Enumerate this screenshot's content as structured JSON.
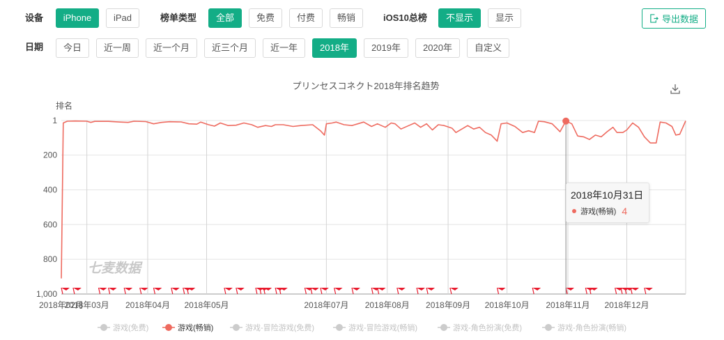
{
  "filters": {
    "device": {
      "label": "设备",
      "options": [
        {
          "label": "iPhone",
          "active": true
        },
        {
          "label": "iPad",
          "active": false
        }
      ]
    },
    "list_type": {
      "label": "榜单类型",
      "options": [
        {
          "label": "全部",
          "active": true
        },
        {
          "label": "免费",
          "active": false
        },
        {
          "label": "付费",
          "active": false
        },
        {
          "label": "畅销",
          "active": false
        }
      ]
    },
    "ios10": {
      "label": "iOS10总榜",
      "options": [
        {
          "label": "不显示",
          "active": true
        },
        {
          "label": "显示",
          "active": false
        }
      ]
    },
    "date": {
      "label": "日期",
      "options": [
        {
          "label": "今日",
          "active": false
        },
        {
          "label": "近一周",
          "active": false
        },
        {
          "label": "近一个月",
          "active": false
        },
        {
          "label": "近三个月",
          "active": false
        },
        {
          "label": "近一年",
          "active": false
        },
        {
          "label": "2018年",
          "active": true
        },
        {
          "label": "2019年",
          "active": false
        },
        {
          "label": "2020年",
          "active": false
        },
        {
          "label": "自定义",
          "active": false
        }
      ]
    }
  },
  "export_label": "导出数据",
  "colors": {
    "accent": "#13ad86",
    "series": "#ee6a5f",
    "flag": "#e8192c",
    "legend_inactive": "#cccccc"
  },
  "watermark": "七麦数据",
  "tooltip": {
    "date": "2018年10月31日",
    "series": "游戏(畅销)",
    "value": "4"
  },
  "chart_data": {
    "type": "line",
    "title": "プリンセスコネクト2018年排名趋势",
    "ylabel": "排名",
    "y_inverted": true,
    "ylim": [
      1,
      1000
    ],
    "y_ticks": [
      "1",
      "200",
      "400",
      "600",
      "800",
      "1,000"
    ],
    "x_range": [
      "2018-02-16",
      "2018-12-31"
    ],
    "x_ticks": [
      "2018年02月",
      "2018年03月",
      "2018年04月",
      "2018年05月",
      "2018年07月",
      "2018年08月",
      "2018年09月",
      "2018年10月",
      "2018年11月",
      "2018年12月"
    ],
    "legend": [
      {
        "name": "游戏(免费)",
        "active": false
      },
      {
        "name": "游戏(畅销)",
        "active": true
      },
      {
        "name": "游戏-冒险游戏(免费)",
        "active": false
      },
      {
        "name": "游戏-冒险游戏(畅销)",
        "active": false
      },
      {
        "name": "游戏-角色扮演(免费)",
        "active": false
      },
      {
        "name": "游戏-角色扮演(畅销)",
        "active": false
      }
    ],
    "series": [
      {
        "name": "游戏(畅销)",
        "points": [
          [
            "2018-02-16",
            910
          ],
          [
            "2018-02-17",
            15
          ],
          [
            "2018-02-19",
            5
          ],
          [
            "2018-02-23",
            4
          ],
          [
            "2018-03-01",
            5
          ],
          [
            "2018-03-03",
            12
          ],
          [
            "2018-03-05",
            6
          ],
          [
            "2018-03-12",
            6
          ],
          [
            "2018-03-18",
            10
          ],
          [
            "2018-03-22",
            12
          ],
          [
            "2018-03-25",
            5
          ],
          [
            "2018-03-31",
            7
          ],
          [
            "2018-04-04",
            20
          ],
          [
            "2018-04-08",
            12
          ],
          [
            "2018-04-12",
            8
          ],
          [
            "2018-04-18",
            9
          ],
          [
            "2018-04-22",
            20
          ],
          [
            "2018-04-26",
            22
          ],
          [
            "2018-04-28",
            10
          ],
          [
            "2018-05-02",
            25
          ],
          [
            "2018-05-05",
            33
          ],
          [
            "2018-05-08",
            15
          ],
          [
            "2018-05-12",
            30
          ],
          [
            "2018-05-16",
            28
          ],
          [
            "2018-05-20",
            15
          ],
          [
            "2018-05-24",
            25
          ],
          [
            "2018-05-27",
            40
          ],
          [
            "2018-05-31",
            30
          ],
          [
            "2018-06-03",
            35
          ],
          [
            "2018-06-05",
            25
          ],
          [
            "2018-06-09",
            25
          ],
          [
            "2018-06-14",
            35
          ],
          [
            "2018-06-18",
            30
          ],
          [
            "2018-06-24",
            25
          ],
          [
            "2018-06-28",
            60
          ],
          [
            "2018-06-30",
            85
          ],
          [
            "2018-07-01",
            20
          ],
          [
            "2018-07-04",
            15
          ],
          [
            "2018-07-06",
            10
          ],
          [
            "2018-07-10",
            25
          ],
          [
            "2018-07-14",
            30
          ],
          [
            "2018-07-17",
            20
          ],
          [
            "2018-07-20",
            10
          ],
          [
            "2018-07-24",
            35
          ],
          [
            "2018-07-27",
            20
          ],
          [
            "2018-07-31",
            40
          ],
          [
            "2018-08-03",
            15
          ],
          [
            "2018-08-05",
            20
          ],
          [
            "2018-08-08",
            50
          ],
          [
            "2018-08-12",
            30
          ],
          [
            "2018-08-15",
            15
          ],
          [
            "2018-08-18",
            40
          ],
          [
            "2018-08-21",
            20
          ],
          [
            "2018-08-24",
            55
          ],
          [
            "2018-08-27",
            25
          ],
          [
            "2018-08-30",
            30
          ],
          [
            "2018-09-03",
            45
          ],
          [
            "2018-09-05",
            70
          ],
          [
            "2018-09-08",
            50
          ],
          [
            "2018-09-11",
            30
          ],
          [
            "2018-09-14",
            50
          ],
          [
            "2018-09-17",
            40
          ],
          [
            "2018-09-20",
            70
          ],
          [
            "2018-09-23",
            85
          ],
          [
            "2018-09-26",
            120
          ],
          [
            "2018-09-28",
            20
          ],
          [
            "2018-10-01",
            15
          ],
          [
            "2018-10-05",
            35
          ],
          [
            "2018-10-09",
            70
          ],
          [
            "2018-10-12",
            60
          ],
          [
            "2018-10-15",
            70
          ],
          [
            "2018-10-17",
            5
          ],
          [
            "2018-10-20",
            8
          ],
          [
            "2018-10-24",
            20
          ],
          [
            "2018-10-28",
            65
          ],
          [
            "2018-10-31",
            4
          ],
          [
            "2018-11-03",
            20
          ],
          [
            "2018-11-06",
            90
          ],
          [
            "2018-11-09",
            95
          ],
          [
            "2018-11-12",
            110
          ],
          [
            "2018-11-15",
            85
          ],
          [
            "2018-11-18",
            95
          ],
          [
            "2018-11-21",
            65
          ],
          [
            "2018-11-24",
            40
          ],
          [
            "2018-11-26",
            70
          ],
          [
            "2018-11-29",
            70
          ],
          [
            "2018-12-01",
            55
          ],
          [
            "2018-12-04",
            15
          ],
          [
            "2018-12-07",
            40
          ],
          [
            "2018-12-10",
            95
          ],
          [
            "2018-12-13",
            130
          ],
          [
            "2018-12-16",
            130
          ],
          [
            "2018-12-18",
            10
          ],
          [
            "2018-12-21",
            15
          ],
          [
            "2018-12-24",
            35
          ],
          [
            "2018-12-26",
            85
          ],
          [
            "2018-12-28",
            80
          ],
          [
            "2018-12-31",
            3
          ]
        ]
      }
    ],
    "highlight": {
      "x": "2018-10-31",
      "y": 4
    },
    "event_flags": [
      "2018-02-16",
      "2018-02-22",
      "2018-03-07",
      "2018-03-12",
      "2018-03-20",
      "2018-03-28",
      "2018-04-04",
      "2018-04-13",
      "2018-04-19",
      "2018-04-21",
      "2018-05-10",
      "2018-05-16",
      "2018-05-26",
      "2018-05-28",
      "2018-05-30",
      "2018-06-05",
      "2018-06-07",
      "2018-06-20",
      "2018-06-23",
      "2018-06-28",
      "2018-07-05",
      "2018-07-14",
      "2018-07-24",
      "2018-07-27",
      "2018-08-06",
      "2018-08-16",
      "2018-08-21",
      "2018-09-02",
      "2018-09-26",
      "2018-10-14",
      "2018-10-31",
      "2018-11-10",
      "2018-11-12",
      "2018-11-25",
      "2018-11-28",
      "2018-11-30",
      "2018-12-03",
      "2018-12-10"
    ]
  }
}
